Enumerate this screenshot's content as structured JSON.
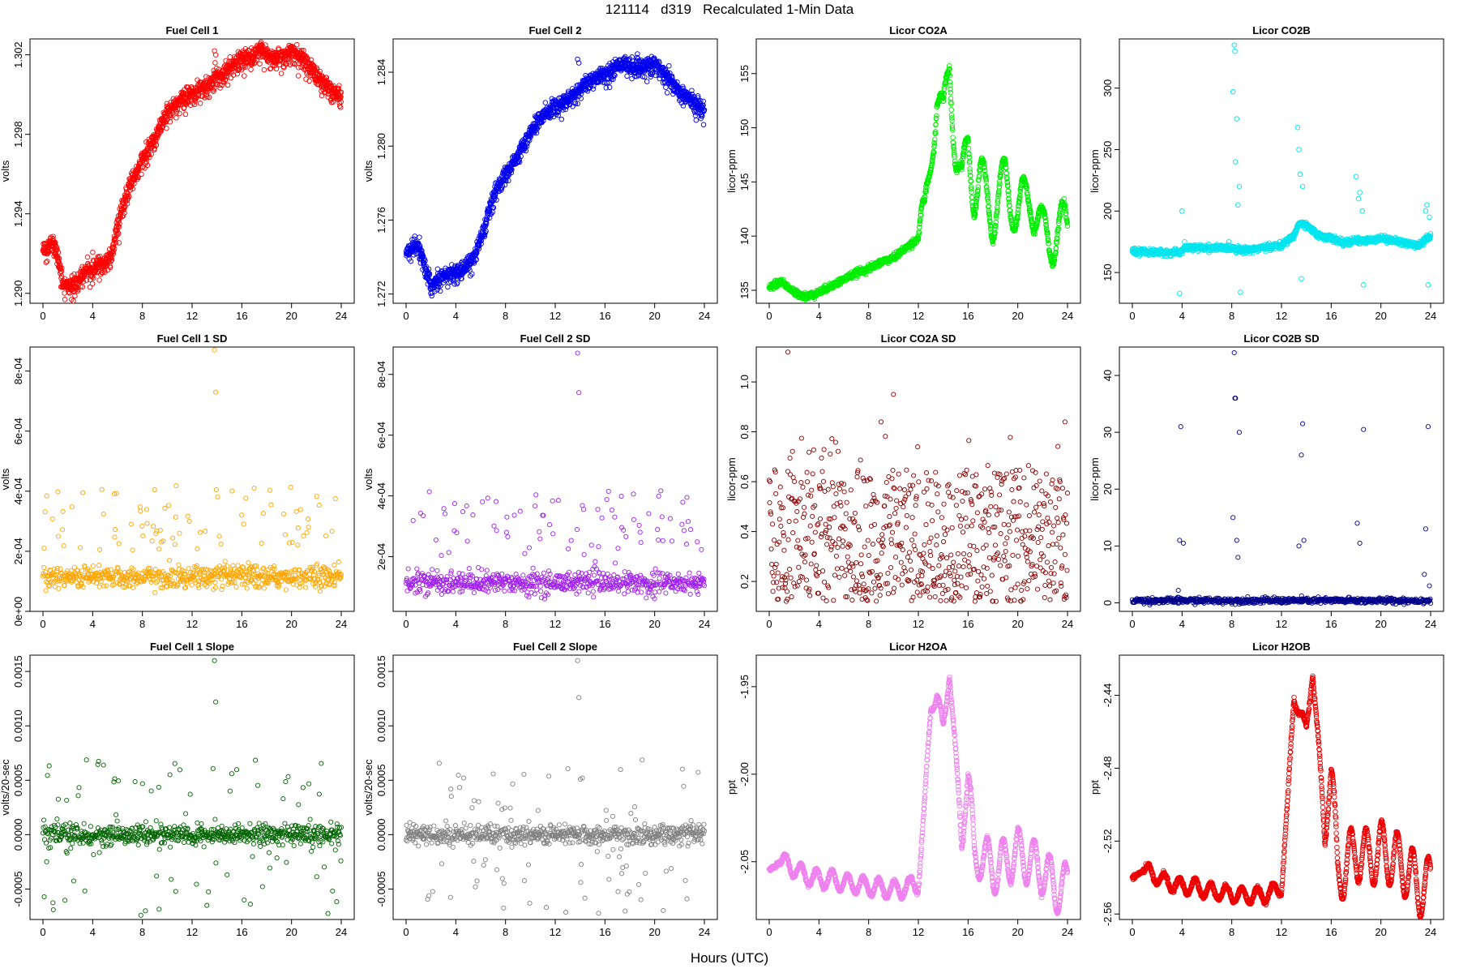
{
  "page": {
    "title": "121114   d319   Recalculated 1-Min Data",
    "xlabel": "Hours (UTC)"
  },
  "chart_data": [
    {
      "type": "scatter",
      "title": "Fuel Cell 1",
      "ylabel": "volts",
      "color": "#ff0000",
      "x_ticks": [
        0,
        4,
        8,
        12,
        16,
        20,
        24
      ],
      "xlim": [
        0,
        24
      ],
      "y_ticks": [
        "1.290",
        "1.294",
        "1.298",
        "1.302"
      ],
      "ylim": [
        1.2895,
        1.3028
      ],
      "marker_size": "large",
      "profile": [
        [
          0,
          1.2922
        ],
        [
          0.8,
          1.2926
        ],
        [
          1.2,
          1.2918
        ],
        [
          1.6,
          1.2905
        ],
        [
          2.5,
          1.2905
        ],
        [
          3.5,
          1.2912
        ],
        [
          5.5,
          1.2918
        ],
        [
          6,
          1.2935
        ],
        [
          7,
          1.2955
        ],
        [
          8,
          1.2968
        ],
        [
          9,
          1.2978
        ],
        [
          10,
          1.2992
        ],
        [
          11,
          1.2998
        ],
        [
          12,
          1.3001
        ],
        [
          13,
          1.3004
        ],
        [
          14,
          1.301
        ],
        [
          15,
          1.3014
        ],
        [
          16,
          1.3018
        ],
        [
          17,
          1.302
        ],
        [
          17.5,
          1.3024
        ],
        [
          18.5,
          1.3018
        ],
        [
          20,
          1.3022
        ],
        [
          21,
          1.3018
        ],
        [
          22,
          1.301
        ],
        [
          23,
          1.3004
        ],
        [
          24,
          1.2998
        ]
      ],
      "noise_sigma": 0.0002,
      "scatter_down": 0.0006,
      "outliers": [
        [
          13.8,
          1.3022
        ],
        [
          13.9,
          1.302
        ],
        [
          13.85,
          1.3016
        ]
      ]
    },
    {
      "type": "scatter",
      "title": "Fuel Cell 2",
      "ylabel": "volts",
      "color": "#0000ee",
      "x_ticks": [
        0,
        4,
        8,
        12,
        16,
        20,
        24
      ],
      "xlim": [
        0,
        24
      ],
      "y_ticks": [
        "1.272",
        "1.276",
        "1.280",
        "1.284"
      ],
      "ylim": [
        1.2715,
        1.2858
      ],
      "marker_size": "large",
      "profile": [
        [
          0,
          1.2743
        ],
        [
          1,
          1.2747
        ],
        [
          1.5,
          1.2736
        ],
        [
          2,
          1.2725
        ],
        [
          3,
          1.273
        ],
        [
          4.5,
          1.2733
        ],
        [
          5.5,
          1.274
        ],
        [
          6,
          1.275
        ],
        [
          7,
          1.2772
        ],
        [
          8,
          1.2785
        ],
        [
          9,
          1.2795
        ],
        [
          10,
          1.2808
        ],
        [
          11,
          1.2817
        ],
        [
          12,
          1.2822
        ],
        [
          13,
          1.2825
        ],
        [
          14,
          1.2832
        ],
        [
          15,
          1.2836
        ],
        [
          16,
          1.284
        ],
        [
          17.5,
          1.2845
        ],
        [
          18.5,
          1.2842
        ],
        [
          20,
          1.2845
        ],
        [
          21,
          1.2838
        ],
        [
          22,
          1.283
        ],
        [
          23,
          1.2825
        ],
        [
          24,
          1.282
        ]
      ],
      "noise_sigma": 0.0002,
      "scatter_down": 0.0005,
      "outliers": [
        [
          13.8,
          1.2847
        ],
        [
          13.9,
          1.2845
        ]
      ]
    },
    {
      "type": "scatter",
      "title": "Licor CO2A",
      "ylabel": "licor-ppm",
      "color": "#00ee00",
      "x_ticks": [
        0,
        4,
        8,
        12,
        16,
        20,
        24
      ],
      "xlim": [
        0,
        24
      ],
      "y_ticks": [
        "135",
        "140",
        "145",
        "150",
        "155"
      ],
      "ylim": [
        133.8,
        158.2
      ],
      "marker_size": "large",
      "profile": [
        [
          0,
          135.3
        ],
        [
          1,
          135.8
        ],
        [
          2,
          134.8
        ],
        [
          3,
          134.4
        ],
        [
          4,
          134.8
        ],
        [
          5,
          135.4
        ],
        [
          6,
          136.0
        ],
        [
          7,
          136.6
        ],
        [
          8,
          137.0
        ],
        [
          9,
          137.6
        ],
        [
          10,
          138.0
        ],
        [
          11,
          138.9
        ],
        [
          12,
          139.8
        ],
        [
          12.5,
          141
        ],
        [
          13,
          148
        ],
        [
          13.5,
          153
        ],
        [
          14,
          150
        ],
        [
          14.5,
          156.5
        ],
        [
          15,
          148
        ],
        [
          15.5,
          144
        ],
        [
          16,
          149
        ],
        [
          16.5,
          144
        ],
        [
          17,
          145
        ],
        [
          18,
          142
        ],
        [
          19,
          145
        ],
        [
          20,
          142
        ],
        [
          21,
          144
        ],
        [
          22,
          140
        ],
        [
          23,
          140
        ],
        [
          24,
          141
        ]
      ],
      "oscillation": {
        "start": 12,
        "period": 1.6,
        "amp": 2.5
      },
      "noise_sigma": 0.15,
      "scatter_down": 0
    },
    {
      "type": "scatter",
      "title": "Licor CO2B",
      "ylabel": "licor-ppm",
      "color": "#00e5ee",
      "x_ticks": [
        0,
        4,
        8,
        12,
        16,
        20,
        24
      ],
      "xlim": [
        0,
        24
      ],
      "y_ticks": [
        "150",
        "200",
        "250",
        "300"
      ],
      "ylim": [
        125,
        340
      ],
      "marker_size": "large",
      "profile": [
        [
          0,
          167
        ],
        [
          3.8,
          166
        ],
        [
          4.2,
          170
        ],
        [
          8,
          170
        ],
        [
          8.8,
          168
        ],
        [
          12,
          172
        ],
        [
          13,
          180
        ],
        [
          13.4,
          190
        ],
        [
          14,
          188
        ],
        [
          15,
          180
        ],
        [
          16,
          178
        ],
        [
          17,
          174
        ],
        [
          18,
          176
        ],
        [
          19,
          176
        ],
        [
          20,
          178
        ],
        [
          21,
          176
        ],
        [
          22,
          174
        ],
        [
          23,
          172
        ],
        [
          24,
          180
        ]
      ],
      "noise_sigma": 1.2,
      "scatter_down": 0,
      "outliers": [
        [
          3.8,
          133
        ],
        [
          4,
          200
        ],
        [
          4.2,
          175
        ],
        [
          8.1,
          297
        ],
        [
          8.2,
          335
        ],
        [
          8.25,
          330
        ],
        [
          8.3,
          240
        ],
        [
          8.4,
          275
        ],
        [
          8.5,
          205
        ],
        [
          8.6,
          220
        ],
        [
          8.7,
          134
        ],
        [
          13.3,
          268
        ],
        [
          13.4,
          250
        ],
        [
          13.5,
          230
        ],
        [
          13.6,
          145
        ],
        [
          13.7,
          220
        ],
        [
          18,
          228
        ],
        [
          18.2,
          210
        ],
        [
          18.3,
          215
        ],
        [
          18.5,
          200
        ],
        [
          18.6,
          140
        ],
        [
          23.6,
          200
        ],
        [
          23.7,
          205
        ],
        [
          23.8,
          140
        ],
        [
          23.9,
          195
        ]
      ]
    },
    {
      "type": "scatter",
      "title": "Fuel Cell 1 SD",
      "ylabel": "volts",
      "color": "#ffa500",
      "x_ticks": [
        0,
        4,
        8,
        12,
        16,
        20,
        24
      ],
      "xlim": [
        0,
        24
      ],
      "y_ticks": [
        "0e+00",
        "2e-04",
        "4e-04",
        "6e-04",
        "8e-04"
      ],
      "ylim": [
        0,
        0.00088
      ],
      "marker_size": "small",
      "profile": [
        [
          0,
          0.000115
        ],
        [
          24,
          0.000115
        ]
      ],
      "noise_sigma": 1.8e-05,
      "sparse_band": [
        0.0002,
        0.00042
      ],
      "outliers": [
        [
          13.8,
          0.00087
        ],
        [
          13.9,
          0.00073
        ]
      ]
    },
    {
      "type": "scatter",
      "title": "Fuel Cell 2 SD",
      "ylabel": "volts",
      "color": "#a020f0",
      "x_ticks": [
        0,
        4,
        8,
        12,
        16,
        20,
        24
      ],
      "xlim": [
        0,
        24
      ],
      "y_ticks": [
        "2e-04",
        "4e-04",
        "6e-04",
        "8e-04"
      ],
      "ylim": [
        2e-05,
        0.00089
      ],
      "marker_size": "small",
      "profile": [
        [
          0,
          0.000115
        ],
        [
          24,
          0.000115
        ]
      ],
      "noise_sigma": 1.8e-05,
      "sparse_band": [
        0.0002,
        0.00042
      ],
      "outliers": [
        [
          13.8,
          0.00087
        ],
        [
          13.9,
          0.00074
        ]
      ]
    },
    {
      "type": "scatter",
      "title": "Licor CO2A SD",
      "ylabel": "licor-ppm",
      "color": "#8b0000",
      "x_ticks": [
        0,
        4,
        8,
        12,
        16,
        20,
        24
      ],
      "xlim": [
        0,
        24
      ],
      "y_ticks": [
        "0.2",
        "0.4",
        "0.6",
        "0.8",
        "1.0"
      ],
      "ylim": [
        0.08,
        1.14
      ],
      "marker_size": "small",
      "uniform_band": [
        0.12,
        0.65
      ],
      "outliers": [
        [
          1.5,
          1.12
        ],
        [
          10,
          0.95
        ],
        [
          9,
          0.84
        ],
        [
          23.8,
          0.84
        ]
      ]
    },
    {
      "type": "scatter",
      "title": "Licor CO2B SD",
      "ylabel": "licor-ppm",
      "color": "#00008b",
      "x_ticks": [
        0,
        4,
        8,
        12,
        16,
        20,
        24
      ],
      "xlim": [
        0,
        24
      ],
      "y_ticks": [
        "0",
        "10",
        "20",
        "30",
        "40"
      ],
      "ylim": [
        -1.5,
        45
      ],
      "marker_size": "small",
      "profile": [
        [
          0,
          0.4
        ],
        [
          24,
          0.4
        ]
      ],
      "noise_sigma": 0.25,
      "scatter_down": 0,
      "outliers": [
        [
          3.7,
          2.2
        ],
        [
          3.8,
          11
        ],
        [
          3.9,
          31
        ],
        [
          4.1,
          10.5
        ],
        [
          8.1,
          15
        ],
        [
          8.2,
          44
        ],
        [
          8.25,
          36
        ],
        [
          8.3,
          36
        ],
        [
          8.4,
          11
        ],
        [
          8.5,
          8
        ],
        [
          8.6,
          30
        ],
        [
          13.4,
          10
        ],
        [
          13.6,
          26
        ],
        [
          13.7,
          31.5
        ],
        [
          13.8,
          11
        ],
        [
          18.1,
          14
        ],
        [
          18.3,
          10.5
        ],
        [
          18.6,
          30.5
        ],
        [
          23.5,
          5
        ],
        [
          23.6,
          13
        ],
        [
          23.8,
          31
        ],
        [
          23.9,
          3
        ]
      ]
    },
    {
      "type": "scatter",
      "title": "Fuel Cell 1 Slope",
      "ylabel": "volts/20-sec",
      "color": "#006400",
      "x_ticks": [
        0,
        4,
        8,
        12,
        16,
        20,
        24
      ],
      "xlim": [
        0,
        24
      ],
      "y_ticks": [
        "-0.0005",
        "0.0000",
        "0.0005",
        "0.0010",
        "0.0015"
      ],
      "ylim": [
        -0.00078,
        0.00165
      ],
      "marker_size": "small",
      "profile": [
        [
          0,
          0
        ],
        [
          24,
          0
        ]
      ],
      "noise_sigma": 4.5e-05,
      "sparse_band": [
        -0.00075,
        0.0007
      ],
      "outliers": [
        [
          13.8,
          0.0016
        ],
        [
          13.9,
          0.00122
        ]
      ]
    },
    {
      "type": "scatter",
      "title": "Fuel Cell 2 Slope",
      "ylabel": "volts/20-sec",
      "color": "#808080",
      "x_ticks": [
        0,
        4,
        8,
        12,
        16,
        20,
        24
      ],
      "xlim": [
        0,
        24
      ],
      "y_ticks": [
        "-0.0005",
        "0.0000",
        "0.0005",
        "0.0010",
        "0.0015"
      ],
      "ylim": [
        -0.00078,
        0.00165
      ],
      "marker_size": "small",
      "profile": [
        [
          0,
          0
        ],
        [
          24,
          0
        ]
      ],
      "noise_sigma": 4.5e-05,
      "sparse_band": [
        -0.00075,
        0.0007
      ],
      "outliers": [
        [
          13.8,
          0.0016
        ],
        [
          13.9,
          0.00126
        ]
      ]
    },
    {
      "type": "scatter",
      "title": "Licor H2OA",
      "ylabel": "ppt",
      "color": "#ee82ee",
      "x_ticks": [
        0,
        4,
        8,
        12,
        16,
        20,
        24
      ],
      "xlim": [
        0,
        24
      ],
      "y_ticks": [
        "-2.05",
        "-2.00",
        "-1.95"
      ],
      "ylim": [
        -2.083,
        -1.932
      ],
      "marker_size": "large",
      "profile": [
        [
          0,
          -2.055
        ],
        [
          1,
          -2.05
        ],
        [
          2,
          -2.054
        ],
        [
          3,
          -2.058
        ],
        [
          4,
          -2.06
        ],
        [
          5,
          -2.06
        ],
        [
          6,
          -2.062
        ],
        [
          7,
          -2.063
        ],
        [
          8,
          -2.064
        ],
        [
          9,
          -2.065
        ],
        [
          10,
          -2.066
        ],
        [
          11,
          -2.065
        ],
        [
          12,
          -2.062
        ],
        [
          12.5,
          -2.02
        ],
        [
          13,
          -1.96
        ],
        [
          13.5,
          -1.955
        ],
        [
          14,
          -1.975
        ],
        [
          14.5,
          -1.94
        ],
        [
          15,
          -1.99
        ],
        [
          15.5,
          -2.04
        ],
        [
          16,
          -2.0
        ],
        [
          16.5,
          -2.05
        ],
        [
          17,
          -2.045
        ],
        [
          18,
          -2.055
        ],
        [
          19,
          -2.05
        ],
        [
          20,
          -2.045
        ],
        [
          21,
          -2.05
        ],
        [
          22,
          -2.055
        ],
        [
          23,
          -2.065
        ],
        [
          24,
          -2.065
        ]
      ],
      "oscillation": {
        "start": 1,
        "period": 1.25,
        "amp": 0.005,
        "late_amp": 0.014
      },
      "noise_sigma": 0.0006,
      "scatter_down": 0
    },
    {
      "type": "scatter",
      "title": "Licor H2OB",
      "ylabel": "ppt",
      "color": "#ee0000",
      "x_ticks": [
        0,
        4,
        8,
        12,
        16,
        20,
        24
      ],
      "xlim": [
        0,
        24
      ],
      "y_ticks": [
        "-2.56",
        "-2.52",
        "-2.48",
        "-2.44"
      ],
      "ylim": [
        -2.563,
        -2.418
      ],
      "marker_size": "large",
      "profile": [
        [
          0,
          -2.54
        ],
        [
          1,
          -2.536
        ],
        [
          2,
          -2.54
        ],
        [
          3,
          -2.543
        ],
        [
          4,
          -2.545
        ],
        [
          5,
          -2.545
        ],
        [
          6,
          -2.547
        ],
        [
          7,
          -2.548
        ],
        [
          8,
          -2.549
        ],
        [
          9,
          -2.55
        ],
        [
          10,
          -2.55
        ],
        [
          11,
          -2.549
        ],
        [
          12,
          -2.545
        ],
        [
          12.5,
          -2.5
        ],
        [
          13,
          -2.44
        ],
        [
          13.5,
          -2.45
        ],
        [
          14,
          -2.46
        ],
        [
          14.5,
          -2.425
        ],
        [
          15,
          -2.47
        ],
        [
          15.5,
          -2.52
        ],
        [
          16,
          -2.48
        ],
        [
          16.5,
          -2.54
        ],
        [
          17,
          -2.535
        ],
        [
          18,
          -2.525
        ],
        [
          19,
          -2.53
        ],
        [
          20,
          -2.525
        ],
        [
          21,
          -2.53
        ],
        [
          22,
          -2.535
        ],
        [
          23,
          -2.545
        ],
        [
          24,
          -2.545
        ]
      ],
      "oscillation": {
        "start": 1,
        "period": 1.25,
        "amp": 0.004,
        "late_amp": 0.016
      },
      "noise_sigma": 0.0006,
      "scatter_down": 0
    }
  ]
}
